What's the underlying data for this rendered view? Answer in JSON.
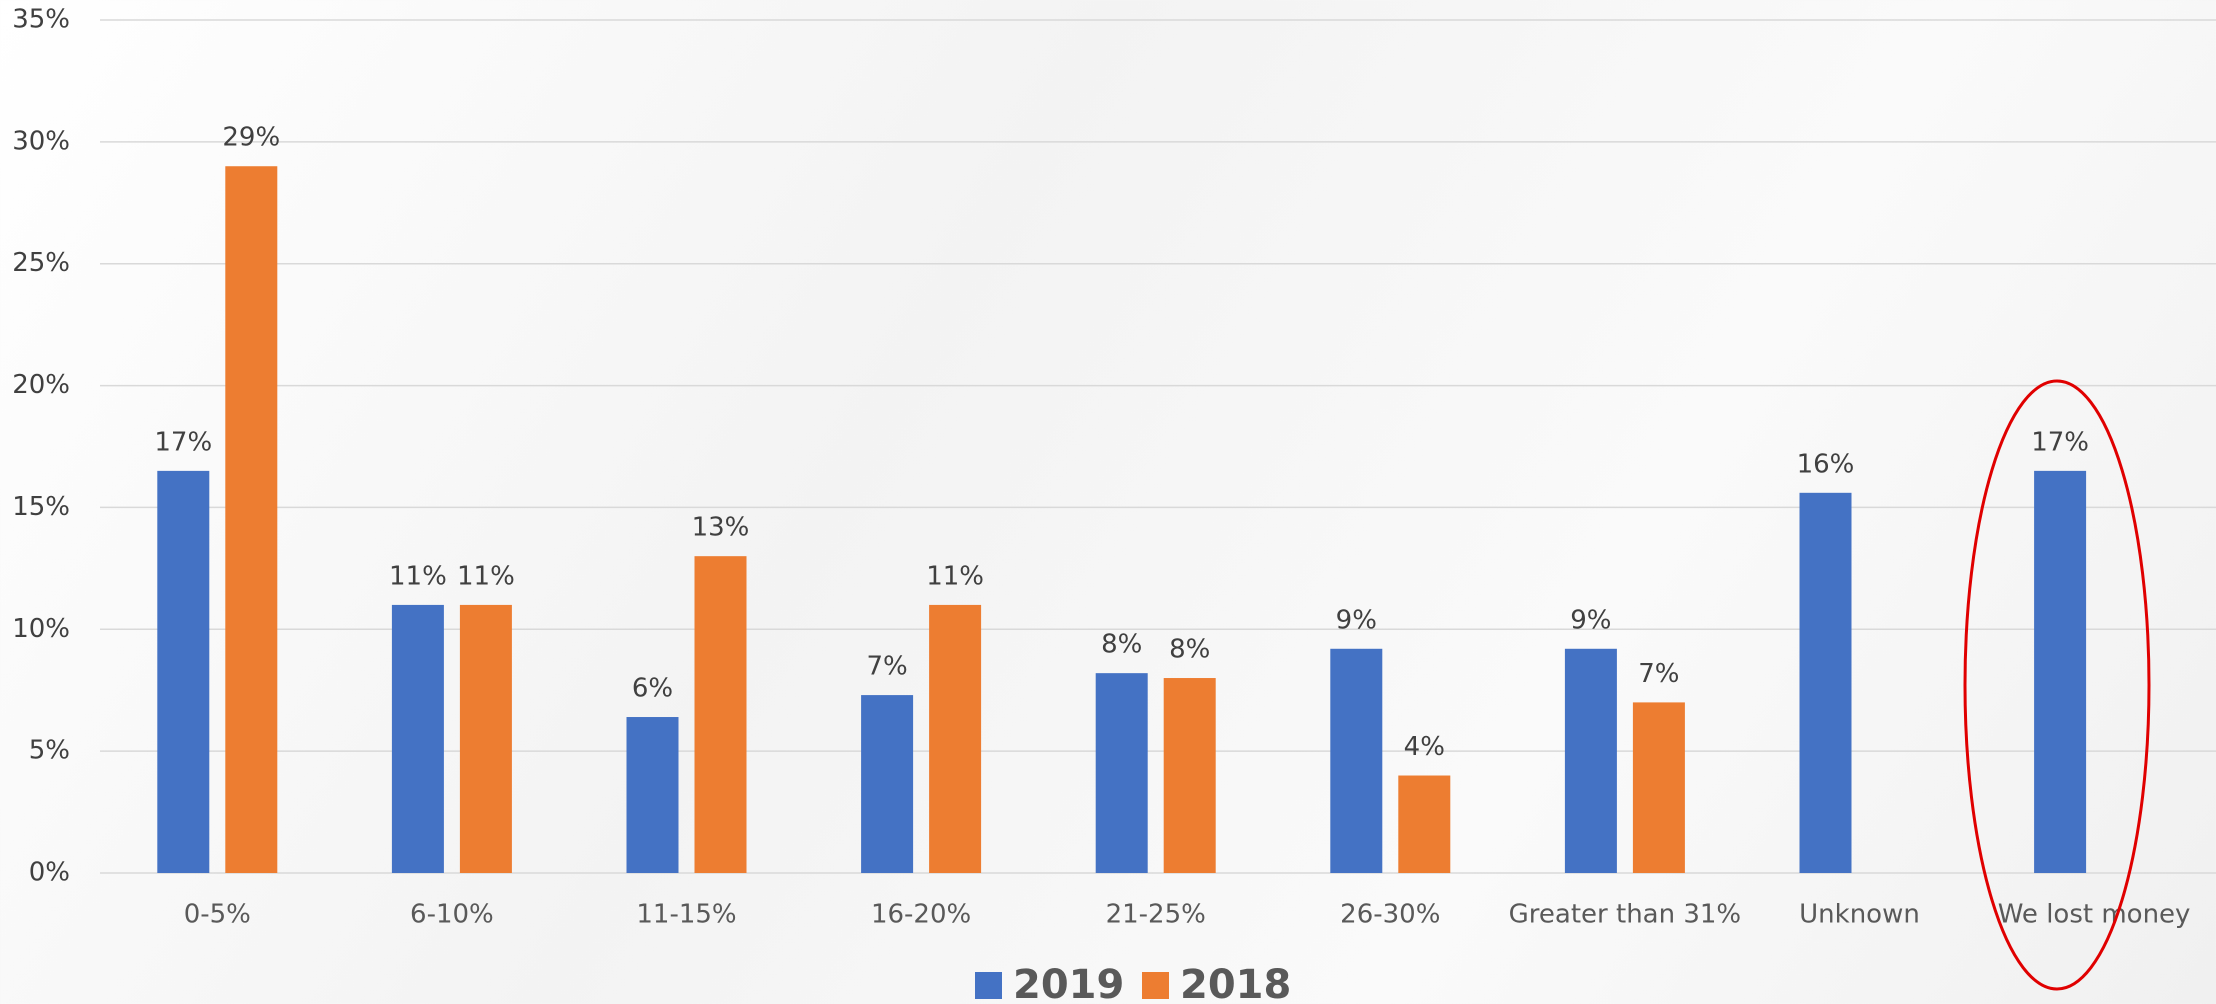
{
  "chart_data": {
    "type": "bar",
    "categories": [
      "0-5%",
      "6-10%",
      "11-15%",
      "16-20%",
      "21-25%",
      "26-30%",
      "Greater than 31%",
      "Unknown",
      "We lost money"
    ],
    "series": [
      {
        "name": "2019",
        "color": "#4472c4",
        "values": [
          16.5,
          11,
          6.4,
          7.3,
          8.2,
          9.2,
          9.2,
          15.6,
          16.5
        ],
        "value_labels": [
          "17%",
          "11%",
          "6%",
          "7%",
          "8%",
          "9%",
          "9%",
          "16%",
          "17%"
        ]
      },
      {
        "name": "2018",
        "color": "#ed7d31",
        "values": [
          29,
          11,
          13,
          11,
          8,
          4,
          7,
          null,
          null
        ],
        "value_labels": [
          "29%",
          "11%",
          "13%",
          "11%",
          "8%",
          "4%",
          "7%",
          null,
          null
        ]
      }
    ],
    "ylim": [
      0,
      35
    ],
    "yticks": [
      {
        "value": 0,
        "label": "0%"
      },
      {
        "value": 5,
        "label": "5%"
      },
      {
        "value": 10,
        "label": "10%"
      },
      {
        "value": 15,
        "label": "15%"
      },
      {
        "value": 20,
        "label": "20%"
      },
      {
        "value": 25,
        "label": "25%"
      },
      {
        "value": 30,
        "label": "30%"
      },
      {
        "value": 35,
        "label": "35%"
      }
    ],
    "grid": true,
    "legend": "bottom"
  }
}
